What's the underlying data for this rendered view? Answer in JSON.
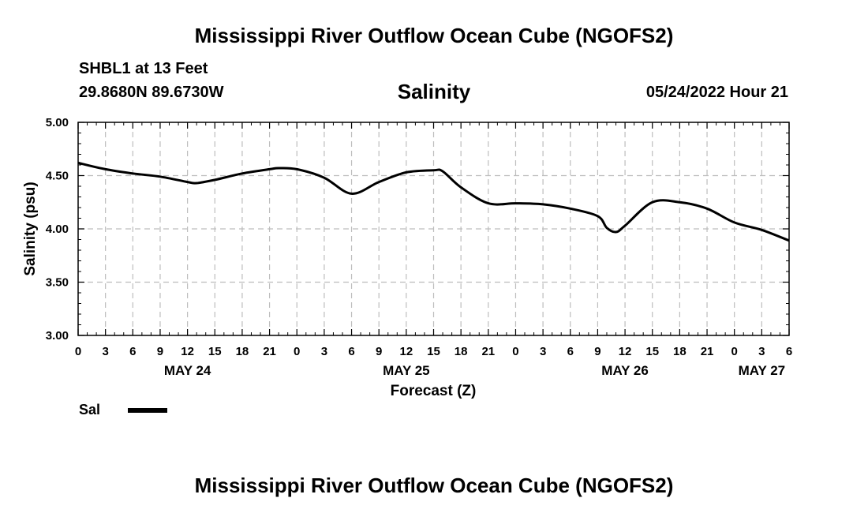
{
  "header": {
    "title": "Mississippi River Outflow Ocean Cube (NGOFS2)",
    "station": "SHBL1 at 13 Feet",
    "coords": "29.8680N  89.6730W",
    "variable": "Salinity",
    "datetime": "05/24/2022 Hour 21"
  },
  "footer": {
    "title": "Mississippi River Outflow Ocean Cube (NGOFS2)"
  },
  "legend": {
    "label": "Sal",
    "color": "#000000"
  },
  "chart_data": {
    "type": "line",
    "title": "Salinity",
    "xlabel": "Forecast (Z)",
    "ylabel": "Salinity (psu)",
    "xlim": [
      0,
      78
    ],
    "ylim": [
      3.0,
      5.0
    ],
    "yticks": [
      "3.00",
      "3.50",
      "4.00",
      "4.50",
      "5.00"
    ],
    "xtick_labels": [
      "0",
      "3",
      "6",
      "9",
      "12",
      "15",
      "18",
      "21",
      "0",
      "3",
      "6",
      "9",
      "12",
      "15",
      "18",
      "21",
      "0",
      "3",
      "6",
      "9",
      "12",
      "15",
      "18",
      "21",
      "0",
      "3",
      "6"
    ],
    "date_labels": [
      {
        "text": "MAY 24",
        "hour": 12
      },
      {
        "text": "MAY 25",
        "hour": 36
      },
      {
        "text": "MAY 26",
        "hour": 60
      },
      {
        "text": "MAY 27",
        "hour": 75
      }
    ],
    "grid": true,
    "series": [
      {
        "name": "Sal",
        "x": [
          0,
          3,
          6,
          9,
          12,
          13,
          15,
          18,
          21,
          22,
          24,
          27,
          30,
          33,
          36,
          39,
          40,
          42,
          45,
          48,
          51,
          54,
          57,
          58,
          59,
          60,
          63,
          66,
          69,
          72,
          75,
          78
        ],
        "y": [
          4.62,
          4.56,
          4.52,
          4.49,
          4.44,
          4.43,
          4.46,
          4.52,
          4.56,
          4.57,
          4.56,
          4.48,
          4.33,
          4.44,
          4.53,
          4.55,
          4.54,
          4.39,
          4.24,
          4.24,
          4.23,
          4.19,
          4.12,
          4.01,
          3.97,
          4.03,
          4.25,
          4.25,
          4.19,
          4.06,
          3.99,
          3.89
        ]
      }
    ]
  }
}
